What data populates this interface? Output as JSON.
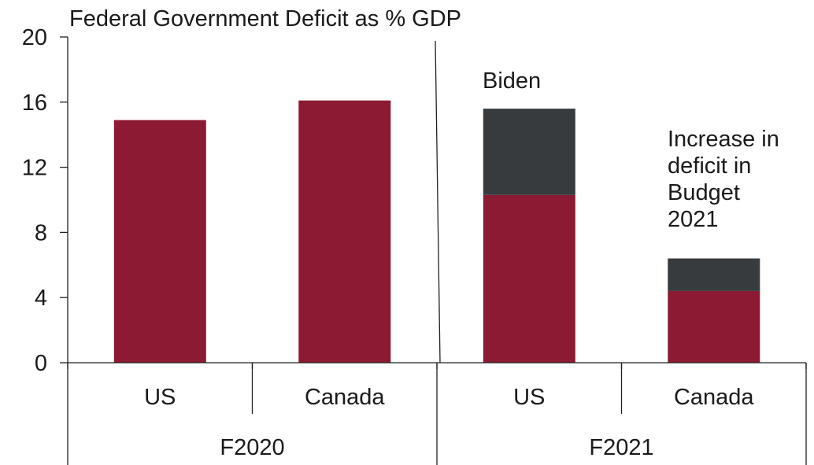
{
  "chart_data": {
    "type": "bar",
    "title": "Federal Government Deficit as % GDP",
    "ylim": [
      0,
      20
    ],
    "yticks": [
      "0",
      "4",
      "8",
      "12",
      "16",
      "20"
    ],
    "groups": [
      {
        "label": "F2020",
        "categories": [
          "US",
          "Canada"
        ]
      },
      {
        "label": "F2021",
        "categories": [
          "US",
          "Canada"
        ]
      }
    ],
    "series": [
      {
        "values": [
          14.9,
          16.1,
          10.3,
          4.4
        ],
        "color": "#8b1a32"
      },
      {
        "values": [
          0,
          0,
          5.3,
          2.0
        ],
        "color": "#373b3e"
      }
    ],
    "annotations": [
      {
        "lines": [
          "Biden"
        ]
      },
      {
        "lines": [
          "Increase in",
          "deficit in",
          "Budget",
          "2021"
        ]
      }
    ],
    "grid": false,
    "legend": "none"
  }
}
